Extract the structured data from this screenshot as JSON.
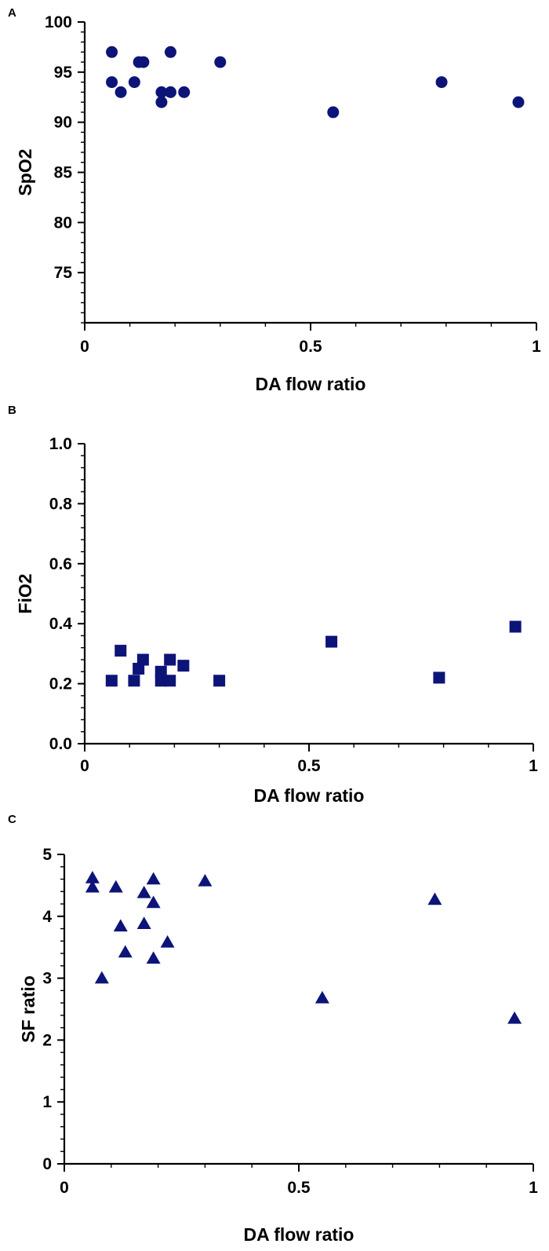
{
  "chart_data": [
    {
      "panel": "A",
      "type": "scatter",
      "marker": "circle",
      "color": "#0d1478",
      "xlabel": "DA flow ratio",
      "ylabel": "SpO2",
      "xlim": [
        0,
        1
      ],
      "ylim": [
        70,
        100
      ],
      "xticks": [
        0,
        0.5,
        1
      ],
      "yticks": [
        75,
        80,
        85,
        90,
        95,
        100
      ],
      "xtick_labels": [
        "0",
        "0.5",
        "1"
      ],
      "ytick_labels": [
        "75",
        "80",
        "85",
        "90",
        "95",
        "100"
      ],
      "points": [
        {
          "x": 0.06,
          "y": 97
        },
        {
          "x": 0.06,
          "y": 94
        },
        {
          "x": 0.08,
          "y": 93
        },
        {
          "x": 0.11,
          "y": 94
        },
        {
          "x": 0.12,
          "y": 96
        },
        {
          "x": 0.13,
          "y": 96
        },
        {
          "x": 0.17,
          "y": 93
        },
        {
          "x": 0.17,
          "y": 92
        },
        {
          "x": 0.19,
          "y": 97
        },
        {
          "x": 0.19,
          "y": 93
        },
        {
          "x": 0.22,
          "y": 93
        },
        {
          "x": 0.3,
          "y": 96
        },
        {
          "x": 0.55,
          "y": 91
        },
        {
          "x": 0.79,
          "y": 94
        },
        {
          "x": 0.96,
          "y": 92
        }
      ]
    },
    {
      "panel": "B",
      "type": "scatter",
      "marker": "square",
      "color": "#0d1478",
      "xlabel": "DA flow ratio",
      "ylabel": "FiO2",
      "xlim": [
        0,
        1
      ],
      "ylim": [
        0,
        1
      ],
      "xticks": [
        0,
        0.5,
        1
      ],
      "yticks": [
        0,
        0.2,
        0.4,
        0.6,
        0.8,
        1.0
      ],
      "xtick_labels": [
        "0",
        "0.5",
        "1"
      ],
      "ytick_labels": [
        "0.0",
        "0.2",
        "0.4",
        "0.6",
        "0.8",
        "1.0"
      ],
      "points": [
        {
          "x": 0.06,
          "y": 0.21
        },
        {
          "x": 0.08,
          "y": 0.31
        },
        {
          "x": 0.11,
          "y": 0.21
        },
        {
          "x": 0.12,
          "y": 0.25
        },
        {
          "x": 0.13,
          "y": 0.28
        },
        {
          "x": 0.17,
          "y": 0.24
        },
        {
          "x": 0.17,
          "y": 0.21
        },
        {
          "x": 0.19,
          "y": 0.28
        },
        {
          "x": 0.19,
          "y": 0.21
        },
        {
          "x": 0.22,
          "y": 0.26
        },
        {
          "x": 0.3,
          "y": 0.21
        },
        {
          "x": 0.55,
          "y": 0.34
        },
        {
          "x": 0.79,
          "y": 0.22
        },
        {
          "x": 0.96,
          "y": 0.39
        }
      ]
    },
    {
      "panel": "C",
      "type": "scatter",
      "marker": "triangle",
      "color": "#0d1478",
      "xlabel": "DA flow ratio",
      "ylabel": "SF ratio",
      "xlim": [
        0,
        1
      ],
      "ylim": [
        0,
        5
      ],
      "xticks": [
        0,
        0.5,
        1
      ],
      "yticks": [
        0,
        1,
        2,
        3,
        4,
        5
      ],
      "xtick_labels": [
        "0",
        "0.5",
        "1"
      ],
      "ytick_labels": [
        "0",
        "1",
        "2",
        "3",
        "4",
        "5"
      ],
      "points": [
        {
          "x": 0.06,
          "y": 4.62
        },
        {
          "x": 0.06,
          "y": 4.47
        },
        {
          "x": 0.08,
          "y": 3.0
        },
        {
          "x": 0.11,
          "y": 4.47
        },
        {
          "x": 0.12,
          "y": 3.84
        },
        {
          "x": 0.13,
          "y": 3.42
        },
        {
          "x": 0.17,
          "y": 3.88
        },
        {
          "x": 0.17,
          "y": 4.38
        },
        {
          "x": 0.19,
          "y": 4.6
        },
        {
          "x": 0.19,
          "y": 4.22
        },
        {
          "x": 0.19,
          "y": 3.32
        },
        {
          "x": 0.22,
          "y": 3.58
        },
        {
          "x": 0.3,
          "y": 4.57
        },
        {
          "x": 0.55,
          "y": 2.68
        },
        {
          "x": 0.79,
          "y": 4.27
        },
        {
          "x": 0.96,
          "y": 2.35
        }
      ]
    }
  ]
}
